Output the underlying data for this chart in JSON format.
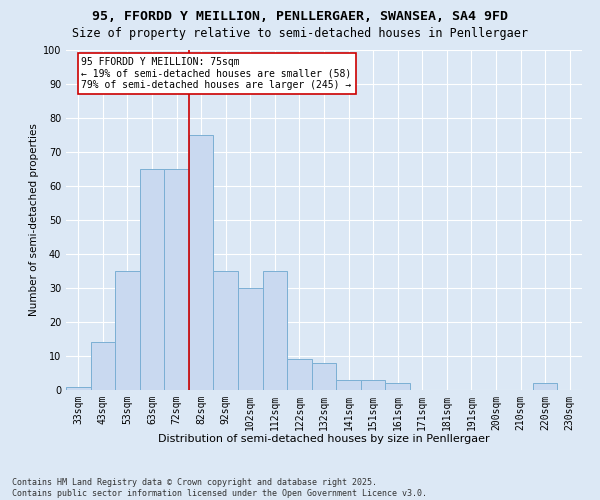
{
  "title1": "95, FFORDD Y MEILLION, PENLLERGAER, SWANSEA, SA4 9FD",
  "title2": "Size of property relative to semi-detached houses in Penllergaer",
  "xlabel": "Distribution of semi-detached houses by size in Penllergaer",
  "ylabel": "Number of semi-detached properties",
  "categories": [
    "33sqm",
    "43sqm",
    "53sqm",
    "63sqm",
    "72sqm",
    "82sqm",
    "92sqm",
    "102sqm",
    "112sqm",
    "122sqm",
    "132sqm",
    "141sqm",
    "151sqm",
    "161sqm",
    "171sqm",
    "181sqm",
    "191sqm",
    "200sqm",
    "210sqm",
    "220sqm",
    "230sqm"
  ],
  "values": [
    1,
    14,
    35,
    65,
    65,
    75,
    35,
    30,
    35,
    9,
    8,
    3,
    3,
    2,
    0,
    0,
    0,
    0,
    0,
    2,
    0
  ],
  "bar_color": "#c9d9f0",
  "bar_edge_color": "#7bafd4",
  "background_color": "#dce8f5",
  "grid_color": "#ffffff",
  "vline_x": 5,
  "vline_color": "#cc0000",
  "annotation_text": "95 FFORDD Y MEILLION: 75sqm\n← 19% of semi-detached houses are smaller (58)\n79% of semi-detached houses are larger (245) →",
  "annotation_box_color": "#ffffff",
  "annotation_box_edge": "#cc0000",
  "footnote": "Contains HM Land Registry data © Crown copyright and database right 2025.\nContains public sector information licensed under the Open Government Licence v3.0.",
  "ylim": [
    0,
    100
  ],
  "yticks": [
    0,
    10,
    20,
    30,
    40,
    50,
    60,
    70,
    80,
    90,
    100
  ],
  "title1_fontsize": 9.5,
  "title2_fontsize": 8.5,
  "xlabel_fontsize": 8,
  "ylabel_fontsize": 7.5,
  "tick_fontsize": 7,
  "annot_fontsize": 7,
  "footnote_fontsize": 6
}
